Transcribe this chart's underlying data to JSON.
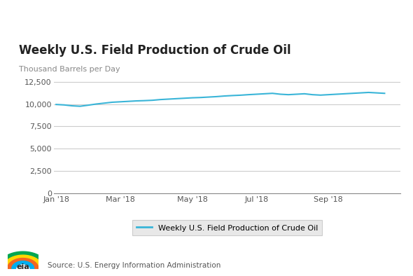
{
  "title": "Weekly U.S. Field Production of Crude Oil",
  "ylabel": "Thousand Barrels per Day",
  "source": "Source: U.S. Energy Information Administration",
  "legend_label": "Weekly U.S. Field Production of Crude Oil",
  "line_color": "#3ab5d8",
  "background_color": "#ffffff",
  "ylim": [
    0,
    13000
  ],
  "yticks": [
    0,
    2500,
    5000,
    7500,
    10000,
    12500
  ],
  "xtick_labels": [
    "Jan '18",
    "Mar '18",
    "May '18",
    "Jul '18",
    "Sep '18"
  ],
  "x_values": [
    0,
    1,
    2,
    3,
    4,
    5,
    6,
    7,
    8,
    9,
    10,
    11,
    12,
    13,
    14,
    15,
    16,
    17,
    18,
    19,
    20,
    21,
    22,
    23,
    24,
    25,
    26,
    27,
    28,
    29,
    30,
    31,
    32,
    33,
    34,
    35,
    36,
    37,
    38,
    39,
    40,
    41
  ],
  "y_values": [
    9950,
    9900,
    9800,
    9750,
    9870,
    10000,
    10100,
    10200,
    10250,
    10300,
    10350,
    10380,
    10420,
    10500,
    10550,
    10600,
    10650,
    10700,
    10730,
    10780,
    10830,
    10900,
    10950,
    10990,
    11050,
    11100,
    11150,
    11200,
    11100,
    11050,
    11100,
    11150,
    11050,
    11000,
    11050,
    11100,
    11150,
    11200,
    11250,
    11300,
    11250,
    11200
  ],
  "xtick_positions": [
    0,
    8,
    17,
    25,
    34
  ],
  "title_fontsize": 12,
  "ylabel_fontsize": 8,
  "tick_fontsize": 8,
  "legend_fontsize": 8,
  "source_fontsize": 7.5,
  "grid_color": "#cccccc",
  "legend_bg": "#e8e8e8",
  "legend_edge": "#cccccc"
}
